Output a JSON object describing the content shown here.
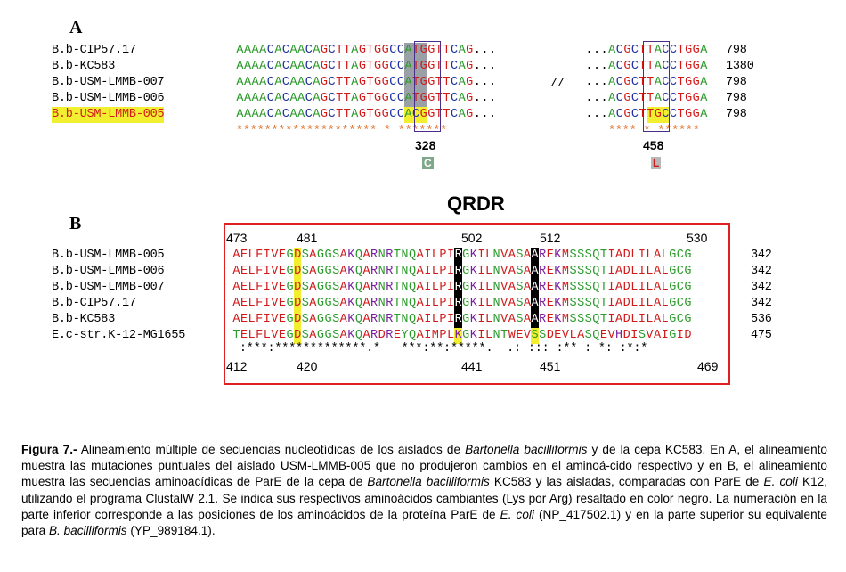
{
  "panelA": {
    "label": "A",
    "names": [
      "B.b-CIP57.17",
      "B.b-KC583",
      "B.b-USM-LMMB-007",
      "B.b-USM-LMMB-006",
      "B.b-USM-LMMB-005"
    ],
    "seq_left": [
      "AAAACACAACAGCTTAGTGGCCATGGTTCAG...",
      "AAAACACAACAGCTTAGTGGCCATGGTTCAG...",
      "AAAACACAACAGCTTAGTGGCCATGGTTCAG...",
      "AAAACACAACAGCTTAGTGGCCATGGTTCAG...",
      "AAAACACAACAGCTTAGTGGCCACGGTTCAG..."
    ],
    "seq_right": [
      "...ACGCTTACCTGGA",
      "...ACGCTTACCTGGA",
      "...ACGCTTACCTGGA",
      "...ACGCTTACCTGGA",
      "...ACGCTTGCCTGGA"
    ],
    "end_nums": [
      "798",
      "1380",
      "798",
      "798",
      "798"
    ],
    "separator": "//",
    "stars_left": "******************** * *******",
    "stars_right": "**** * ******",
    "pos1": "328",
    "pos1_aa": "C",
    "pos2": "458",
    "pos2_aa": "L"
  },
  "panelB": {
    "label": "B",
    "title": "QRDR",
    "names": [
      "B.b-USM-LMMB-005",
      "B.b-USM-LMMB-006",
      "B.b-USM-LMMB-007",
      "B.b-CIP57.17",
      "B.b-KC583",
      "E.c-str.K-12-MG1655"
    ],
    "seqs": [
      "AELFIVEGDSAGGSAKQARNRTNQAILPIRGKILNVASAAREKMSSSQTIADLILALGCG",
      "AELFIVEGDSAGGSAKQARNRTNQAILPIRGKILNVASAAREKMSSSQTIADLILALGCG",
      "AELFIVEGDSAGGSAKQARNRTNQAILPIRGKILNVASAAREKMSSSQTIADLILALGCG",
      "AELFIVEGDSAGGSAKQARNRTNQAILPIRGKILNVASAAREKMSSSQTIADLILALGCG",
      "AELFIVEGDSAGGSAKQARNRTNQAILPIRGKILNVASAAREKMSSSQTIADLILALGCG",
      "TELFLVEGDSAGGSAKQARDREYQAIMPLKGKILNTWEVSSDEVLASQEVHDISVAIGID"
    ],
    "end_nums": [
      "342",
      "342",
      "342",
      "342",
      "536",
      "475"
    ],
    "conservation": " :***:*************.*   ***:**:*****.  .: ::: :** : *: :*:*",
    "top_positions": [
      "473",
      "481",
      "502",
      "512",
      "530"
    ],
    "bottom_positions": [
      "412",
      "420",
      "441",
      "451",
      "469"
    ]
  },
  "caption": {
    "fig_label": "Figura 7.-",
    "p1": " Alineamiento múltiple de secuencias nucleotídicas de los aislados de ",
    "i1": "Bartonella bacilliformis",
    "p2": " y de la cepa KC583. En A, el alineamiento muestra las mutaciones puntuales del aislado USM-LMMB-005 que no produjeron cambios en el aminoá-cido respectivo y en B, el alineamiento muestra las secuencias aminoacídicas de ParE de la cepa de ",
    "i2": "Bartonella bacilliformis",
    "p3": " KC583 y las aisladas, comparadas con ParE de ",
    "i3": "E. coli",
    "p4": " K12, utilizando el programa ClustalW 2.1. Se indica sus respectivos aminoácidos cambiantes (Lys por Arg) resaltado en color negro. La numeración en la parte inferior corresponde a las posiciones de los aminoácidos de la proteína ParE de ",
    "i4": "E. coli",
    "p5": " (NP_417502.1) y en la parte superior su equivalente para ",
    "i5": "B. bacilliformis",
    "p6": " (YP_989184.1)."
  },
  "colors": {
    "highlight_grey": "#9aa0a6",
    "highlight_yellow": "#f2ef30",
    "highlight_black": "#000000",
    "qrdr_box": "#e02020",
    "codon_box": "#4a2c8a"
  }
}
